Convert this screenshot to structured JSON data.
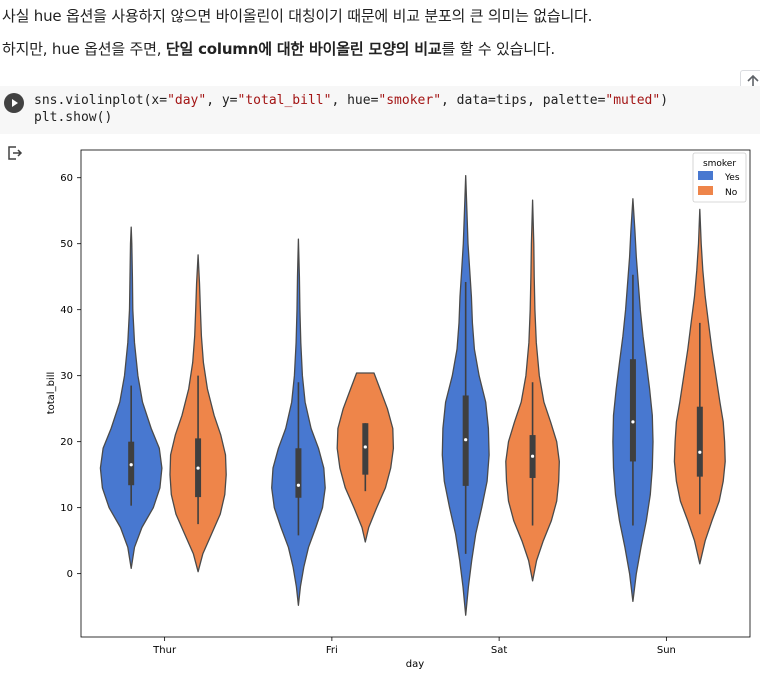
{
  "markdown": {
    "para1": "사실 hue 옵션을 사용하지 않으면 바이올린이 대칭이기 때문에 비교 분포의 큰 의미는 없습니다.",
    "para2_prefix": "하지만, hue 옵션을 주면, ",
    "para2_bold": "단일 column에 대한 바이올린 모양의 비교",
    "para2_suffix": "를 할 수 있습니다."
  },
  "code_cell": {
    "line1": {
      "a": "sns.violinplot(x=",
      "b": "\"day\"",
      "c": ", y=",
      "d": "\"total_bill\"",
      "e": ", hue=",
      "f": "\"smoker\"",
      "g": ", data=tips, palette=",
      "h": "\"muted\"",
      "i": ")"
    },
    "line2": "plt.show()",
    "run_icon": "play-icon",
    "toolbar_icon": "arrow-up-icon",
    "output_icon": "output-redirect-icon"
  },
  "chart_data": {
    "type": "violin",
    "title": "",
    "xlabel": "day",
    "ylabel": "total_bill",
    "categories": [
      "Thur",
      "Fri",
      "Sat",
      "Sun"
    ],
    "yticks": [
      0,
      10,
      20,
      30,
      40,
      50,
      60
    ],
    "ylim": [
      -9.6,
      64.2
    ],
    "legend": {
      "title": "smoker",
      "entries": [
        "Yes",
        "No"
      ],
      "position": "top-right"
    },
    "colors": {
      "Yes": "#4878d0",
      "No": "#ee854a",
      "edge": "#4a4a4a",
      "inner": "#3f3f3f"
    },
    "series": [
      {
        "name": "Yes",
        "violins": [
          {
            "day": "Thur",
            "min": 0.8,
            "max": 52.5,
            "q1": 13.4,
            "median": 16.5,
            "q3": 20.0,
            "whisker_low": 10.3,
            "whisker_high": 28.5,
            "profile": [
              [
                0.8,
                0.0
              ],
              [
                4,
                0.05
              ],
              [
                7,
                0.16
              ],
              [
                10,
                0.33
              ],
              [
                13,
                0.43
              ],
              [
                16,
                0.46
              ],
              [
                19,
                0.42
              ],
              [
                22,
                0.3
              ],
              [
                26,
                0.17
              ],
              [
                30,
                0.1
              ],
              [
                35,
                0.05
              ],
              [
                40,
                0.025
              ],
              [
                45,
                0.018
              ],
              [
                50,
                0.01
              ],
              [
                52.5,
                0.0
              ]
            ]
          },
          {
            "day": "Fri",
            "min": -4.8,
            "max": 50.7,
            "q1": 11.5,
            "median": 13.4,
            "q3": 19.0,
            "whisker_low": 5.8,
            "whisker_high": 29.0,
            "profile": [
              [
                -4.8,
                0.0
              ],
              [
                -2,
                0.03
              ],
              [
                1,
                0.08
              ],
              [
                4,
                0.15
              ],
              [
                7,
                0.26
              ],
              [
                10,
                0.36
              ],
              [
                13,
                0.4
              ],
              [
                16,
                0.38
              ],
              [
                19,
                0.3
              ],
              [
                22,
                0.19
              ],
              [
                26,
                0.1
              ],
              [
                30,
                0.06
              ],
              [
                35,
                0.035
              ],
              [
                40,
                0.022
              ],
              [
                45,
                0.014
              ],
              [
                50.7,
                0.0
              ]
            ]
          },
          {
            "day": "Sat",
            "min": -6.3,
            "max": 60.3,
            "q1": 13.3,
            "median": 20.3,
            "q3": 27.0,
            "whisker_low": 3.0,
            "whisker_high": 44.2,
            "profile": [
              [
                -6.3,
                0.0
              ],
              [
                -2,
                0.04
              ],
              [
                2,
                0.09
              ],
              [
                6,
                0.15
              ],
              [
                10,
                0.24
              ],
              [
                14,
                0.32
              ],
              [
                18,
                0.35
              ],
              [
                22,
                0.34
              ],
              [
                26,
                0.3
              ],
              [
                30,
                0.2
              ],
              [
                34,
                0.13
              ],
              [
                38,
                0.1
              ],
              [
                42,
                0.085
              ],
              [
                46,
                0.06
              ],
              [
                50,
                0.035
              ],
              [
                55,
                0.018
              ],
              [
                60.3,
                0.0
              ]
            ]
          },
          {
            "day": "Sun",
            "min": -4.2,
            "max": 56.8,
            "q1": 17.0,
            "median": 23.0,
            "q3": 32.5,
            "whisker_low": 7.3,
            "whisker_high": 45.3,
            "profile": [
              [
                -4.2,
                0.0
              ],
              [
                0,
                0.05
              ],
              [
                4,
                0.12
              ],
              [
                8,
                0.2
              ],
              [
                12,
                0.26
              ],
              [
                16,
                0.29
              ],
              [
                20,
                0.3
              ],
              [
                24,
                0.29
              ],
              [
                28,
                0.25
              ],
              [
                32,
                0.2
              ],
              [
                36,
                0.15
              ],
              [
                40,
                0.11
              ],
              [
                44,
                0.08
              ],
              [
                48,
                0.05
              ],
              [
                52,
                0.03
              ],
              [
                56.8,
                0.0
              ]
            ]
          }
        ]
      },
      {
        "name": "No",
        "violins": [
          {
            "day": "Thur",
            "min": 0.3,
            "max": 48.3,
            "q1": 11.6,
            "median": 16.0,
            "q3": 20.5,
            "whisker_low": 7.5,
            "whisker_high": 30.0,
            "profile": [
              [
                0.3,
                0.0
              ],
              [
                3,
                0.07
              ],
              [
                6,
                0.2
              ],
              [
                9,
                0.33
              ],
              [
                12,
                0.4
              ],
              [
                15,
                0.42
              ],
              [
                18,
                0.41
              ],
              [
                21,
                0.34
              ],
              [
                24,
                0.24
              ],
              [
                28,
                0.14
              ],
              [
                32,
                0.08
              ],
              [
                36,
                0.05
              ],
              [
                40,
                0.035
              ],
              [
                44,
                0.022
              ],
              [
                48.3,
                0.0
              ]
            ]
          },
          {
            "day": "Fri",
            "min": 4.8,
            "max": 30.4,
            "q1": 15.0,
            "median": 19.2,
            "q3": 22.8,
            "whisker_low": 12.5,
            "whisker_high": 22.8,
            "profile": [
              [
                4.8,
                0.0
              ],
              [
                7,
                0.05
              ],
              [
                10,
                0.17
              ],
              [
                13,
                0.3
              ],
              [
                16,
                0.38
              ],
              [
                19,
                0.42
              ],
              [
                22,
                0.41
              ],
              [
                25,
                0.33
              ],
              [
                28,
                0.22
              ],
              [
                30.4,
                0.13
              ]
            ]
          },
          {
            "day": "Sat",
            "min": -1.1,
            "max": 56.6,
            "q1": 14.5,
            "median": 17.8,
            "q3": 21.0,
            "whisker_low": 7.3,
            "whisker_high": 29.0,
            "profile": [
              [
                -1.1,
                0.0
              ],
              [
                2,
                0.06
              ],
              [
                5,
                0.16
              ],
              [
                8,
                0.28
              ],
              [
                11,
                0.36
              ],
              [
                14,
                0.39
              ],
              [
                17,
                0.4
              ],
              [
                20,
                0.36
              ],
              [
                23,
                0.27
              ],
              [
                26,
                0.17
              ],
              [
                30,
                0.1
              ],
              [
                35,
                0.055
              ],
              [
                40,
                0.035
              ],
              [
                45,
                0.025
              ],
              [
                50,
                0.018
              ],
              [
                56.6,
                0.0
              ]
            ]
          },
          {
            "day": "Sun",
            "min": 1.5,
            "max": 55.2,
            "q1": 14.7,
            "median": 18.4,
            "q3": 25.3,
            "whisker_low": 9.0,
            "whisker_high": 38.0,
            "profile": [
              [
                1.5,
                0.0
              ],
              [
                5,
                0.08
              ],
              [
                8,
                0.18
              ],
              [
                11,
                0.29
              ],
              [
                14,
                0.35
              ],
              [
                17,
                0.38
              ],
              [
                20,
                0.37
              ],
              [
                23,
                0.35
              ],
              [
                26,
                0.3
              ],
              [
                30,
                0.24
              ],
              [
                34,
                0.18
              ],
              [
                38,
                0.13
              ],
              [
                42,
                0.08
              ],
              [
                46,
                0.045
              ],
              [
                50,
                0.02
              ],
              [
                55.2,
                0.0
              ]
            ]
          }
        ]
      }
    ]
  }
}
